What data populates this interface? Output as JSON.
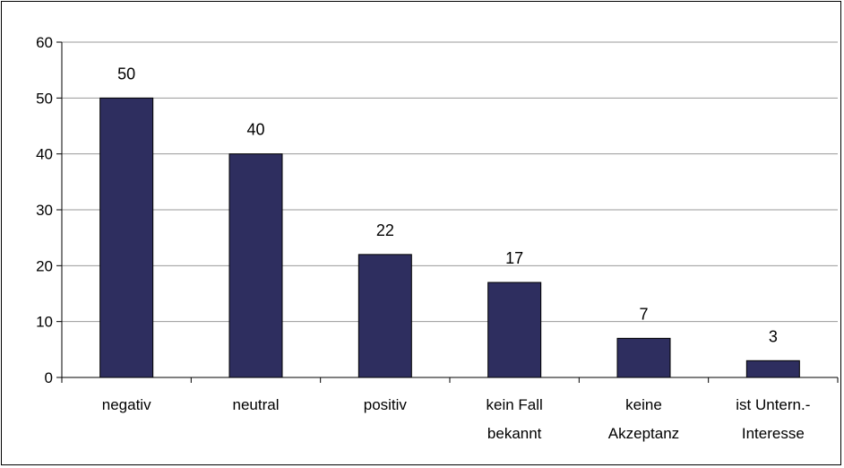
{
  "chart_data": {
    "type": "bar",
    "title": "",
    "xlabel": "",
    "ylabel": "",
    "ylim": [
      0,
      60
    ],
    "yticks": [
      0,
      10,
      20,
      30,
      40,
      50,
      60
    ],
    "grid": true,
    "legend": "none",
    "categories": [
      [
        "negativ"
      ],
      [
        "neutral"
      ],
      [
        "positiv"
      ],
      [
        "kein Fall",
        "bekannt"
      ],
      [
        "keine",
        "Akzeptanz"
      ],
      [
        "ist Untern.-",
        "Interesse"
      ]
    ],
    "values": [
      50,
      40,
      22,
      17,
      7,
      3
    ],
    "data_labels": [
      "50",
      "40",
      "22",
      "17",
      "7",
      "3"
    ],
    "colors": {
      "bar": "#2e2e5f",
      "bar_edge": "#000000",
      "grid": "#9a9a9a",
      "axis": "#000000"
    }
  }
}
